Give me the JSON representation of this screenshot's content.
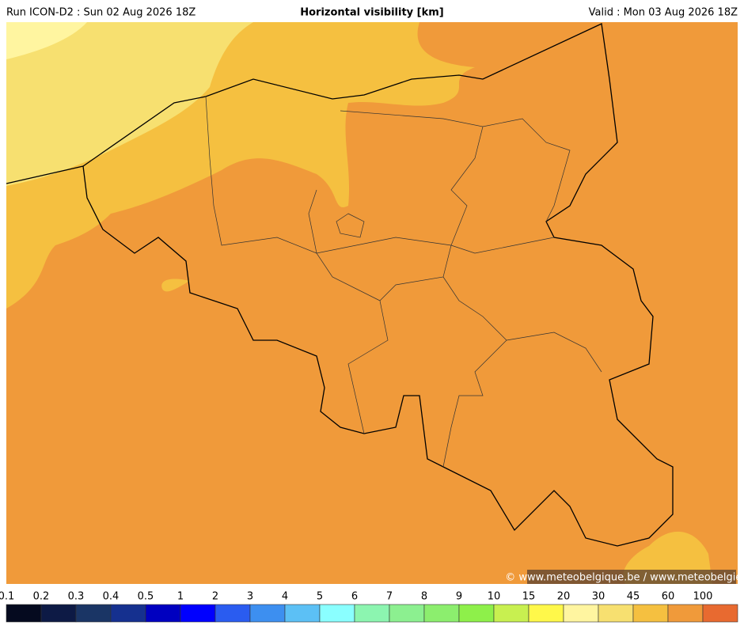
{
  "header": {
    "run": "Run ICON-D2 : Sun 02 Aug 2026 18Z",
    "title": "Horizontal visibility [km]",
    "valid": "Valid : Mon 03 Aug 2026 18Z"
  },
  "credit": "© www.meteobelgique.be / www.meteobelgie.be",
  "colorbar": {
    "ticks": [
      0.1,
      0.2,
      0.3,
      0.4,
      0.5,
      1,
      2,
      3,
      4,
      5,
      6,
      7,
      8,
      9,
      10,
      15,
      20,
      30,
      45,
      60,
      100
    ],
    "colors": [
      "#050a1f",
      "#0d1a45",
      "#1a3565",
      "#15308f",
      "#0000c0",
      "#0000ff",
      "#2a5cf0",
      "#3d8ff0",
      "#5cc0f5",
      "#8affff",
      "#8cf5b0",
      "#8cf090",
      "#8cee6e",
      "#8ef04a",
      "#c8f050",
      "#fff84a",
      "#fff5a0",
      "#f7e070",
      "#f5c040",
      "#f09a3a",
      "#e86a30"
    ]
  }
}
